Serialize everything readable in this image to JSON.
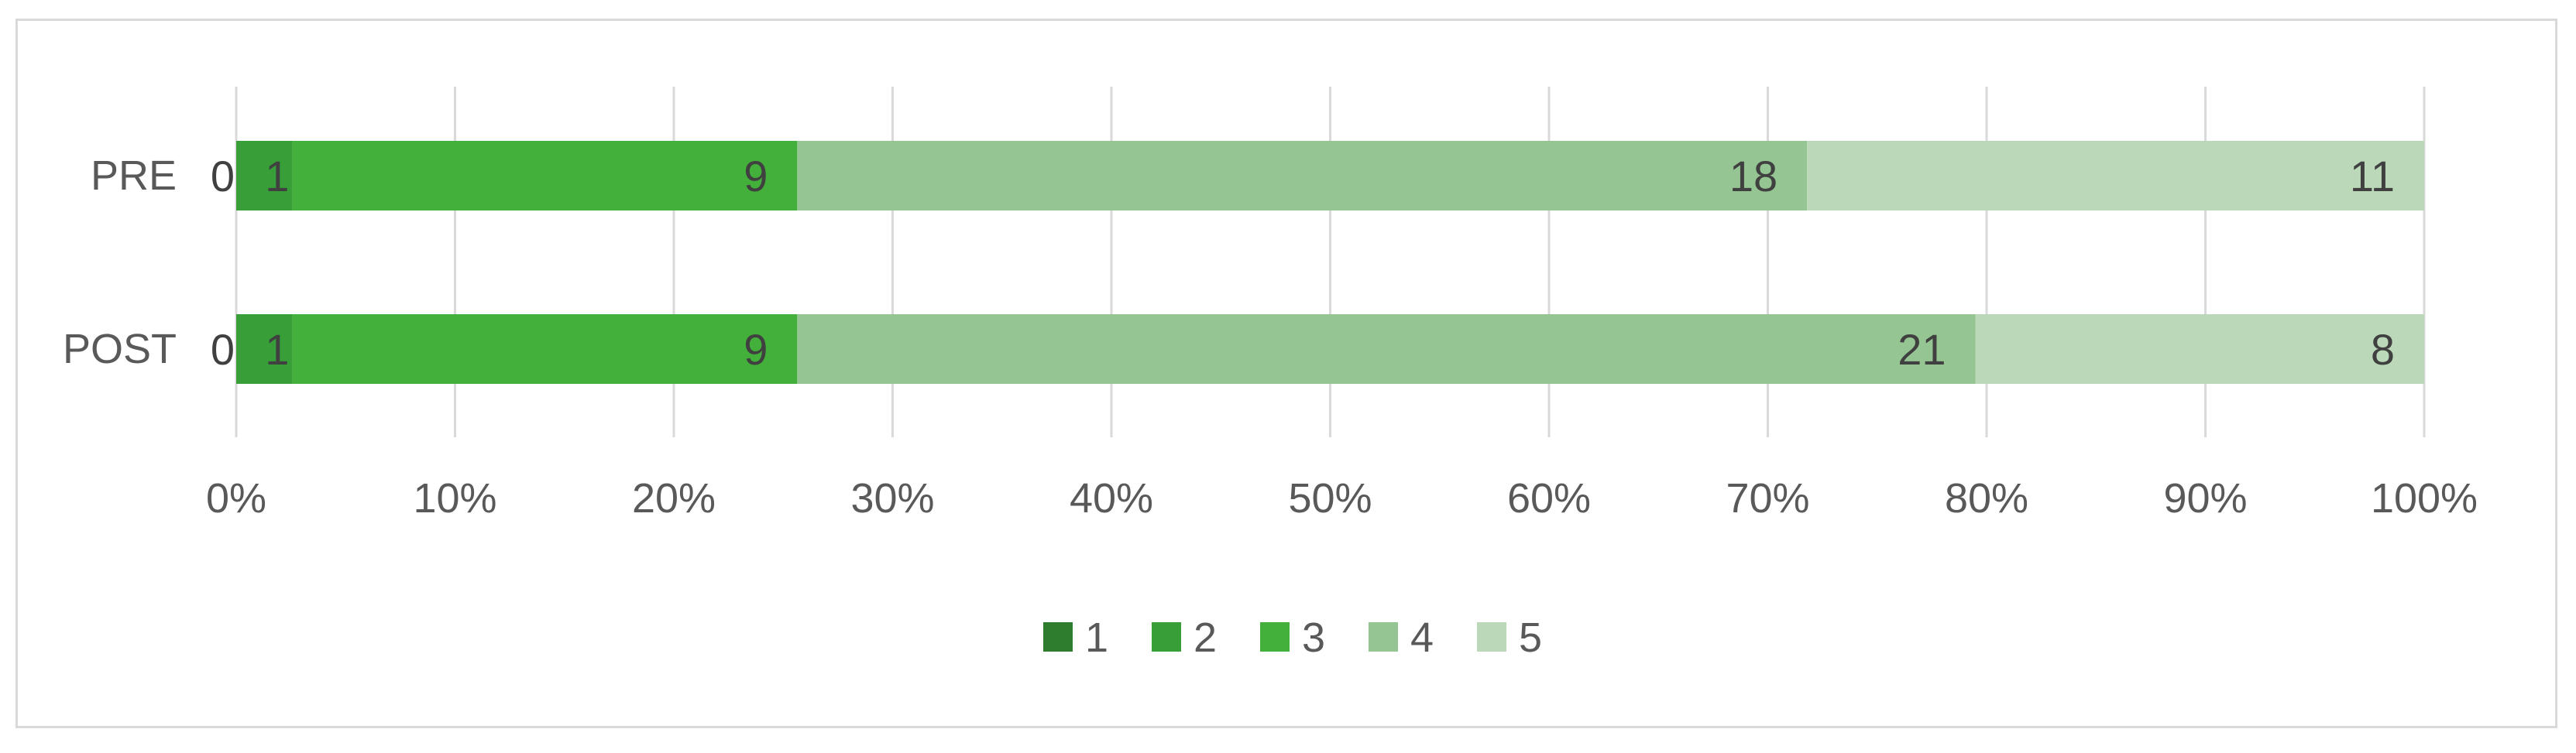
{
  "chart_data": {
    "type": "bar",
    "orientation": "horizontal",
    "stacking": "percent",
    "categories": [
      "PRE",
      "POST"
    ],
    "series": [
      {
        "name": "1",
        "color": "#2e7d2e",
        "values": [
          0,
          0
        ]
      },
      {
        "name": "2",
        "color": "#389e38",
        "values": [
          1,
          1
        ]
      },
      {
        "name": "3",
        "color": "#44b03c",
        "values": [
          9,
          9
        ]
      },
      {
        "name": "4",
        "color": "#95c592",
        "values": [
          18,
          21
        ]
      },
      {
        "name": "5",
        "color": "#bbd9b9",
        "values": [
          11,
          8
        ]
      }
    ],
    "xlim": [
      0,
      100
    ],
    "xticks": [
      "0%",
      "10%",
      "20%",
      "30%",
      "40%",
      "50%",
      "60%",
      "70%",
      "80%",
      "90%",
      "100%"
    ],
    "grid": true,
    "legend": "bottom",
    "title": "",
    "xlabel": "",
    "ylabel": ""
  }
}
